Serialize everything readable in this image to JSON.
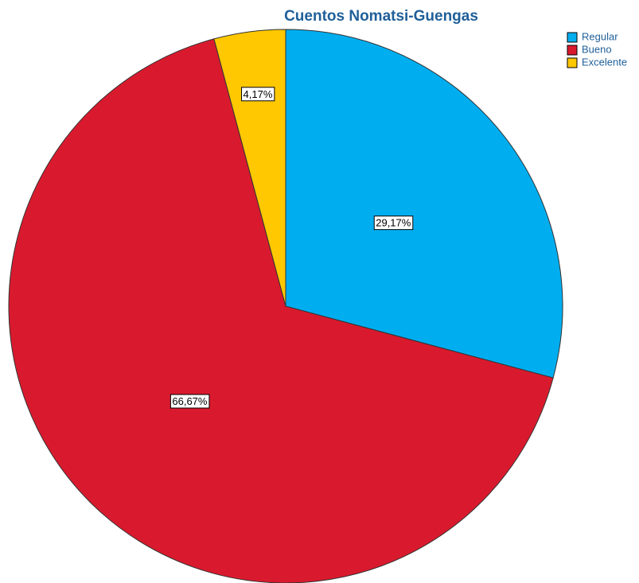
{
  "chart_data": {
    "type": "pie",
    "title": "Cuentos Nomatsi-Guengas",
    "categories": [
      "Regular",
      "Bueno",
      "Excelente"
    ],
    "values": [
      29.17,
      66.67,
      4.17
    ],
    "value_labels": [
      "29,17%",
      "66,67%",
      "4,17%"
    ],
    "colors": [
      "#00aeef",
      "#d91a2e",
      "#ffc800"
    ],
    "legend": "upper right"
  }
}
